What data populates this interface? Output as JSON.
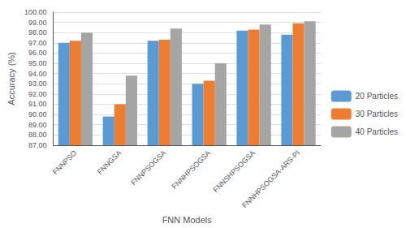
{
  "chart_data": {
    "type": "bar",
    "xlabel": "FNN Models",
    "ylabel": "Accuracy (%)",
    "categories": [
      "FNNPSO",
      "FNNGSA",
      "FNNPSOGSA",
      "FNNHPSOGSA",
      "FNNSHPSOGSA",
      "FNNHPSOGSA-ARS-PI"
    ],
    "series": [
      {
        "name": "20 Particles",
        "color": "#5B9BD5",
        "values": [
          97.0,
          89.8,
          97.2,
          93.0,
          98.2,
          97.8
        ]
      },
      {
        "name": "30 Particles",
        "color": "#ED7D31",
        "values": [
          97.2,
          91.0,
          97.3,
          93.3,
          98.3,
          98.9
        ]
      },
      {
        "name": "40 Particles",
        "color": "#A5A5A5",
        "values": [
          98.0,
          93.8,
          98.4,
          95.0,
          98.8,
          99.1
        ]
      }
    ],
    "ylim": [
      87.0,
      100.0
    ],
    "yticks": [
      {
        "value": 87.0,
        "label": "87.00"
      },
      {
        "value": 88.0,
        "label": "88.00"
      },
      {
        "value": 89.0,
        "label": "89.00"
      },
      {
        "value": 90.0,
        "label": "90.00"
      },
      {
        "value": 91.0,
        "label": "91.00"
      },
      {
        "value": 92.0,
        "label": "92.00"
      },
      {
        "value": 93.0,
        "label": "93.00"
      },
      {
        "value": 94.0,
        "label": "94.00"
      },
      {
        "value": 95.0,
        "label": "95.00"
      },
      {
        "value": 96.0,
        "label": "96.00"
      },
      {
        "value": 97.0,
        "label": "97.00"
      },
      {
        "value": 98.0,
        "label": "98.00"
      },
      {
        "value": 99.0,
        "label": "99.00"
      },
      {
        "value": 100.0,
        "label": "100.00"
      }
    ],
    "grid": true,
    "legend": "right"
  }
}
